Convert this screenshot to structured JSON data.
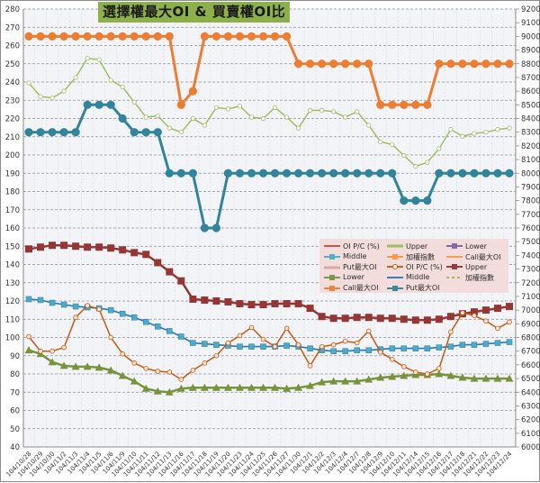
{
  "chart_data": {
    "type": "line",
    "title": "選擇權最大OI & 買賣權OI比",
    "xlabel": "",
    "ylabel_left": "",
    "ylabel_right": "",
    "ylim_left": [
      40,
      280
    ],
    "ylim_right": [
      6000,
      9200
    ],
    "yticks_left": [
      40,
      50,
      60,
      70,
      80,
      90,
      100,
      110,
      120,
      130,
      140,
      150,
      160,
      170,
      180,
      190,
      200,
      210,
      220,
      230,
      240,
      250,
      260,
      270,
      280
    ],
    "yticks_right": [
      6000,
      6100,
      6200,
      6300,
      6400,
      6500,
      6600,
      6700,
      6800,
      6900,
      7000,
      7100,
      7200,
      7300,
      7400,
      7500,
      7600,
      7700,
      7800,
      7900,
      8000,
      8100,
      8200,
      8300,
      8400,
      8500,
      8600,
      8700,
      8800,
      8900,
      9000,
      9100,
      9200
    ],
    "grid": true,
    "legend_position": "inside-lower-right",
    "categories": [
      "104/10/28",
      "104/10/29",
      "104/10/30",
      "104/11/2",
      "104/11/3",
      "104/11/4",
      "104/11/5",
      "104/11/6",
      "104/11/9",
      "104/11/10",
      "104/11/11",
      "104/11/12",
      "104/11/13",
      "104/11/16",
      "104/11/17",
      "104/11/18",
      "104/11/19",
      "104/11/20",
      "104/11/23",
      "104/11/24",
      "104/11/25",
      "104/11/26",
      "104/11/27",
      "104/11/30",
      "104/12/1",
      "104/12/2",
      "104/12/3",
      "104/12/4",
      "104/12/7",
      "104/12/8",
      "104/12/9",
      "104/12/10",
      "104/12/11",
      "104/12/14",
      "104/12/15",
      "104/12/16",
      "104/12/17",
      "104/12/18",
      "104/12/21",
      "104/12/22",
      "104/12/23",
      "104/12/24"
    ],
    "series": [
      {
        "name": "Upper",
        "axis": "left",
        "color": "#943634",
        "marker": "square",
        "width": 2.5,
        "values": [
          148.5,
          149.5,
          150.5,
          150.5,
          150,
          149.5,
          149.5,
          149,
          148,
          146.5,
          145.5,
          141,
          136,
          131,
          121,
          120.5,
          120,
          119.5,
          118.5,
          118,
          118,
          118.5,
          118.5,
          118.5,
          116,
          111.5,
          110.5,
          110.5,
          111,
          111,
          110.5,
          110.5,
          110,
          109.5,
          109.5,
          110,
          111.5,
          113,
          114,
          115,
          116,
          117
        ]
      },
      {
        "name": "Middle",
        "axis": "left",
        "color": "#2e75b6",
        "marker": "square-light",
        "width": 1.6,
        "values": [
          121,
          120.5,
          119,
          118,
          117,
          116.5,
          116,
          115,
          113,
          111,
          108.5,
          106,
          103.5,
          100.5,
          97,
          96.5,
          96,
          95.5,
          95,
          95,
          95,
          95,
          95.5,
          95,
          94,
          93,
          92.5,
          92.5,
          93,
          93,
          93.5,
          94,
          94,
          94,
          94,
          94.5,
          95,
          96,
          96,
          96.5,
          97,
          97.5
        ]
      },
      {
        "name": "Lower",
        "axis": "left",
        "color": "#77933c",
        "marker": "triangle",
        "width": 2.5,
        "values": [
          93,
          91,
          86.5,
          84.5,
          84,
          84,
          83.5,
          82,
          79,
          76,
          72,
          70.5,
          70,
          72,
          72.5,
          72.5,
          72.5,
          72.5,
          72.5,
          72.5,
          72.5,
          72.5,
          72,
          72.5,
          73.5,
          75.5,
          76,
          76,
          76,
          77,
          78,
          78.5,
          79,
          79.5,
          79.5,
          80,
          79,
          78,
          77.5,
          77.5,
          77.5,
          77.5
        ]
      },
      {
        "name": "OI P/C (%)",
        "axis": "left",
        "color": "#c55a11",
        "marker": "circle-open",
        "width": 1.5,
        "values": [
          100.5,
          92.5,
          92.5,
          94.5,
          111,
          117.5,
          115.5,
          100,
          91,
          86,
          83,
          81.5,
          81,
          77,
          82,
          86,
          90,
          97,
          101,
          105.5,
          99,
          95,
          105,
          96,
          84.5,
          95,
          96,
          98,
          97,
          103.5,
          92,
          88,
          84,
          81,
          80,
          83,
          103,
          113.5,
          112,
          109,
          105,
          108.5
        ]
      },
      {
        "name": "加權指數",
        "axis": "right",
        "color": "#9bbb59",
        "marker": "diamond-open",
        "width": 1.4,
        "values": [
          8660,
          8560,
          8550,
          8600,
          8700,
          8840,
          8830,
          8680,
          8630,
          8520,
          8410,
          8420,
          8330,
          8300,
          8400,
          8350,
          8480,
          8470,
          8490,
          8410,
          8400,
          8480,
          8410,
          8330,
          8460,
          8460,
          8450,
          8410,
          8450,
          8350,
          8230,
          8210,
          8130,
          8050,
          8080,
          8180,
          8320,
          8270,
          8290,
          8300,
          8320,
          8330
        ]
      },
      {
        "name": "Call最大OI",
        "axis": "right",
        "color": "#ed7d31",
        "marker": "circle",
        "width": 3,
        "values": [
          9000,
          9000,
          9000,
          9000,
          9000,
          9000,
          9000,
          9000,
          9000,
          9000,
          9000,
          9000,
          9000,
          8500,
          8600,
          9000,
          9000,
          9000,
          9000,
          9000,
          9000,
          9000,
          9000,
          8800,
          8800,
          8800,
          8800,
          8800,
          8800,
          8800,
          8500,
          8500,
          8500,
          8500,
          8500,
          8800,
          8800,
          8800,
          8800,
          8800,
          8800,
          8800
        ]
      },
      {
        "name": "Put最大OI",
        "axis": "right",
        "color": "#31849b",
        "marker": "circle",
        "width": 3,
        "values": [
          8300,
          8300,
          8300,
          8300,
          8300,
          8500,
          8500,
          8500,
          8400,
          8300,
          8300,
          8300,
          8000,
          8000,
          8000,
          7600,
          7600,
          8000,
          8000,
          8000,
          8000,
          8000,
          8000,
          8000,
          8000,
          8000,
          8000,
          8000,
          8000,
          8000,
          8000,
          8000,
          7800,
          7800,
          7800,
          8000,
          8000,
          8000,
          8000,
          8000,
          8000,
          8000
        ]
      }
    ],
    "legend": [
      {
        "label": "OI P/C (%)",
        "color": "#c0504d",
        "style": "line"
      },
      {
        "label": "Upper",
        "color": "#9bbb59",
        "style": "thick"
      },
      {
        "label": "Lower",
        "color": "#8064a2",
        "style": "marker"
      },
      {
        "label": "Middle",
        "color": "#4bacc6",
        "style": "marker"
      },
      {
        "label": "加權指數",
        "color": "#f79646",
        "style": "marker"
      },
      {
        "label": "Call最大OI",
        "color": "#f79646",
        "style": "line"
      },
      {
        "label": "Put最大OI",
        "color": "#d9a3a3",
        "style": "thick"
      },
      {
        "label": "OI P/C (%)",
        "color": "#c55a11",
        "style": "open-circle"
      },
      {
        "label": "Upper",
        "color": "#943634",
        "style": "marker"
      },
      {
        "label": "Lower",
        "color": "#77933c",
        "style": "marker"
      },
      {
        "label": "Middle",
        "color": "#2e75b6",
        "style": "line"
      },
      {
        "label": "加權指數",
        "color": "#9bbb59",
        "style": "dashed"
      },
      {
        "label": "Call最大OI",
        "color": "#ed7d31",
        "style": "marker"
      },
      {
        "label": "Put最大OI",
        "color": "#31849b",
        "style": "marker"
      }
    ]
  },
  "title": "選擇權最大OI & 買賣權OI比"
}
